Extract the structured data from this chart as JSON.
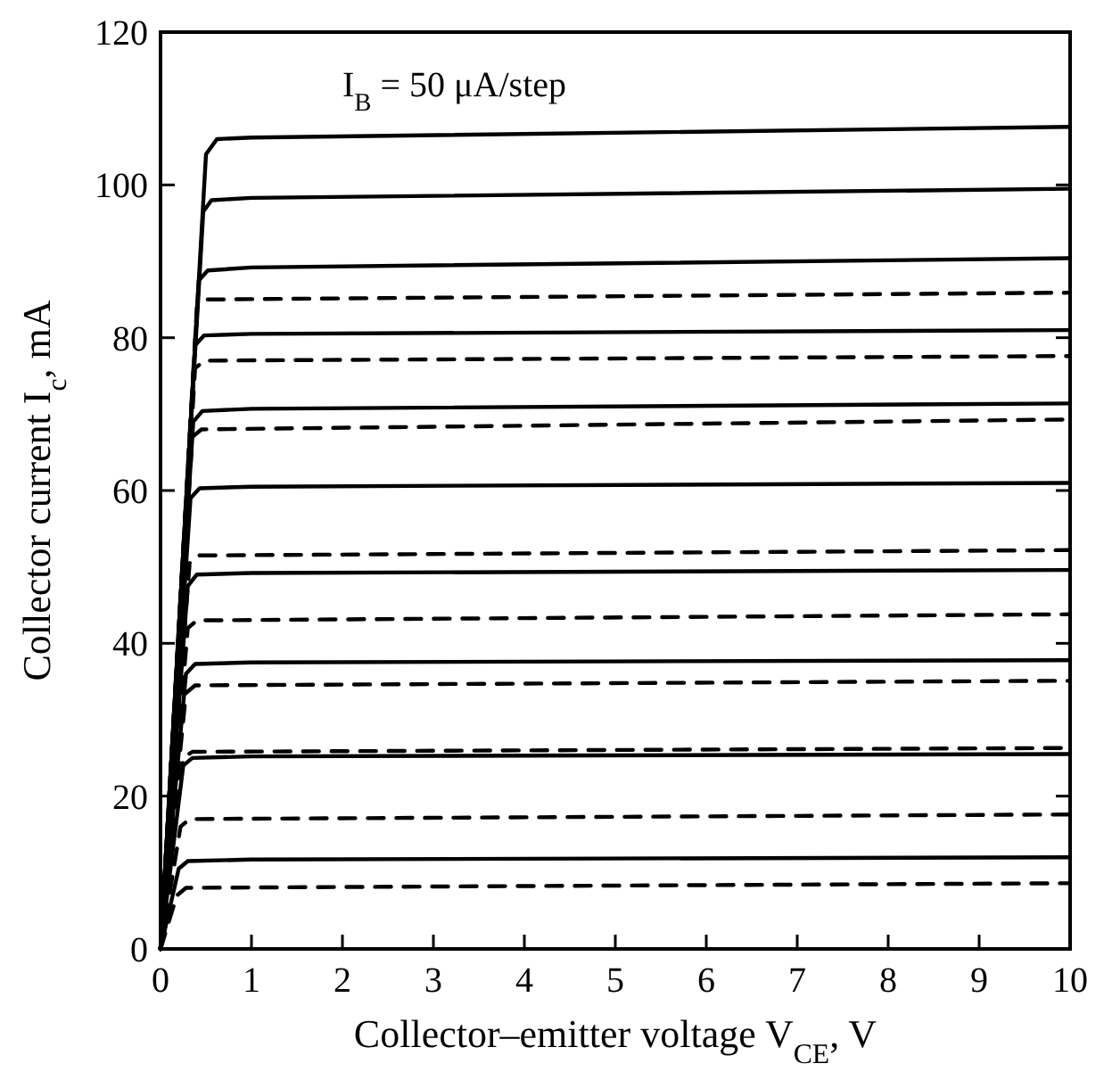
{
  "chart_data": {
    "type": "line",
    "xlabel": "Collector–emitter voltage V$_{CE}$, V",
    "ylabel": "Collector current I$_{c}$, mA",
    "annotations": [
      "I$_{B}$ = 50 μA/step"
    ],
    "xlim": [
      0,
      10
    ],
    "ylim": [
      0,
      120
    ],
    "xticks": [
      0,
      1,
      2,
      3,
      4,
      5,
      6,
      7,
      8,
      9,
      10
    ],
    "yticks": [
      0,
      20,
      40,
      60,
      80,
      100,
      120
    ],
    "grid": false,
    "marker": "none",
    "series": [
      {
        "color": "#000000",
        "line_style": "solid",
        "x": [
          0,
          0.2,
          0.3,
          1,
          10
        ],
        "values": [
          0,
          10.5,
          11.5,
          11.7,
          12
        ]
      },
      {
        "color": "#000000",
        "line_style": "solid",
        "x": [
          0,
          0.25,
          0.35,
          1,
          10
        ],
        "values": [
          0,
          24,
          25,
          25.2,
          25.5
        ]
      },
      {
        "color": "#000000",
        "line_style": "solid",
        "x": [
          0,
          0.28,
          0.38,
          1,
          10
        ],
        "values": [
          0,
          36,
          37.3,
          37.5,
          37.8
        ]
      },
      {
        "color": "#000000",
        "line_style": "solid",
        "x": [
          0,
          0.3,
          0.4,
          1,
          10
        ],
        "values": [
          0,
          47.5,
          49,
          49.2,
          49.6
        ]
      },
      {
        "color": "#000000",
        "line_style": "solid",
        "x": [
          0,
          0.33,
          0.43,
          1,
          10
        ],
        "values": [
          0,
          59,
          60.3,
          60.5,
          61
        ]
      },
      {
        "color": "#000000",
        "line_style": "solid",
        "x": [
          0,
          0.36,
          0.46,
          1,
          10
        ],
        "values": [
          0,
          69,
          70.4,
          70.7,
          71.4
        ]
      },
      {
        "color": "#000000",
        "line_style": "solid",
        "x": [
          0,
          0.38,
          0.48,
          1,
          10
        ],
        "values": [
          0,
          79,
          80.3,
          80.5,
          81
        ]
      },
      {
        "color": "#000000",
        "line_style": "solid",
        "x": [
          0,
          0.42,
          0.52,
          1,
          10
        ],
        "values": [
          0,
          87.5,
          88.8,
          89.2,
          90.4
        ]
      },
      {
        "color": "#000000",
        "line_style": "solid",
        "x": [
          0,
          0.47,
          0.56,
          1,
          10
        ],
        "values": [
          0,
          96.5,
          98,
          98.3,
          99.5
        ]
      },
      {
        "color": "#000000",
        "line_style": "solid",
        "x": [
          0,
          0.5,
          0.62,
          1,
          10
        ],
        "values": [
          0,
          104,
          106,
          106.2,
          107.6
        ]
      },
      {
        "color": "#000000",
        "line_style": "dashed",
        "x": [
          0,
          0.18,
          0.28,
          10
        ],
        "values": [
          0,
          7,
          8,
          8.6
        ]
      },
      {
        "color": "#000000",
        "line_style": "dashed",
        "x": [
          0,
          0.22,
          0.32,
          10
        ],
        "values": [
          0,
          16,
          17,
          17.6
        ]
      },
      {
        "color": "#000000",
        "line_style": "dashed",
        "x": [
          0,
          0.25,
          0.35,
          10
        ],
        "values": [
          0,
          25,
          25.8,
          26.3
        ]
      },
      {
        "color": "#000000",
        "line_style": "dashed",
        "x": [
          0,
          0.28,
          0.38,
          10
        ],
        "values": [
          0,
          33.5,
          34.5,
          35.1
        ]
      },
      {
        "color": "#000000",
        "line_style": "dashed",
        "x": [
          0,
          0.3,
          0.4,
          10
        ],
        "values": [
          0,
          42,
          43,
          43.8
        ]
      },
      {
        "color": "#000000",
        "line_style": "dashed",
        "x": [
          0,
          0.32,
          0.42,
          10
        ],
        "values": [
          0,
          50.5,
          51.5,
          52.2
        ]
      },
      {
        "color": "#000000",
        "line_style": "dashed",
        "x": [
          0,
          0.35,
          0.45,
          10
        ],
        "values": [
          0,
          67,
          68,
          69.3
        ]
      },
      {
        "color": "#000000",
        "line_style": "dashed",
        "x": [
          0,
          0.38,
          0.48,
          10
        ],
        "values": [
          0,
          76,
          77,
          77.6
        ]
      },
      {
        "color": "#000000",
        "line_style": "dashed",
        "x": [
          0,
          0.4,
          0.5,
          10
        ],
        "values": [
          0,
          84,
          85,
          85.9
        ]
      }
    ]
  }
}
